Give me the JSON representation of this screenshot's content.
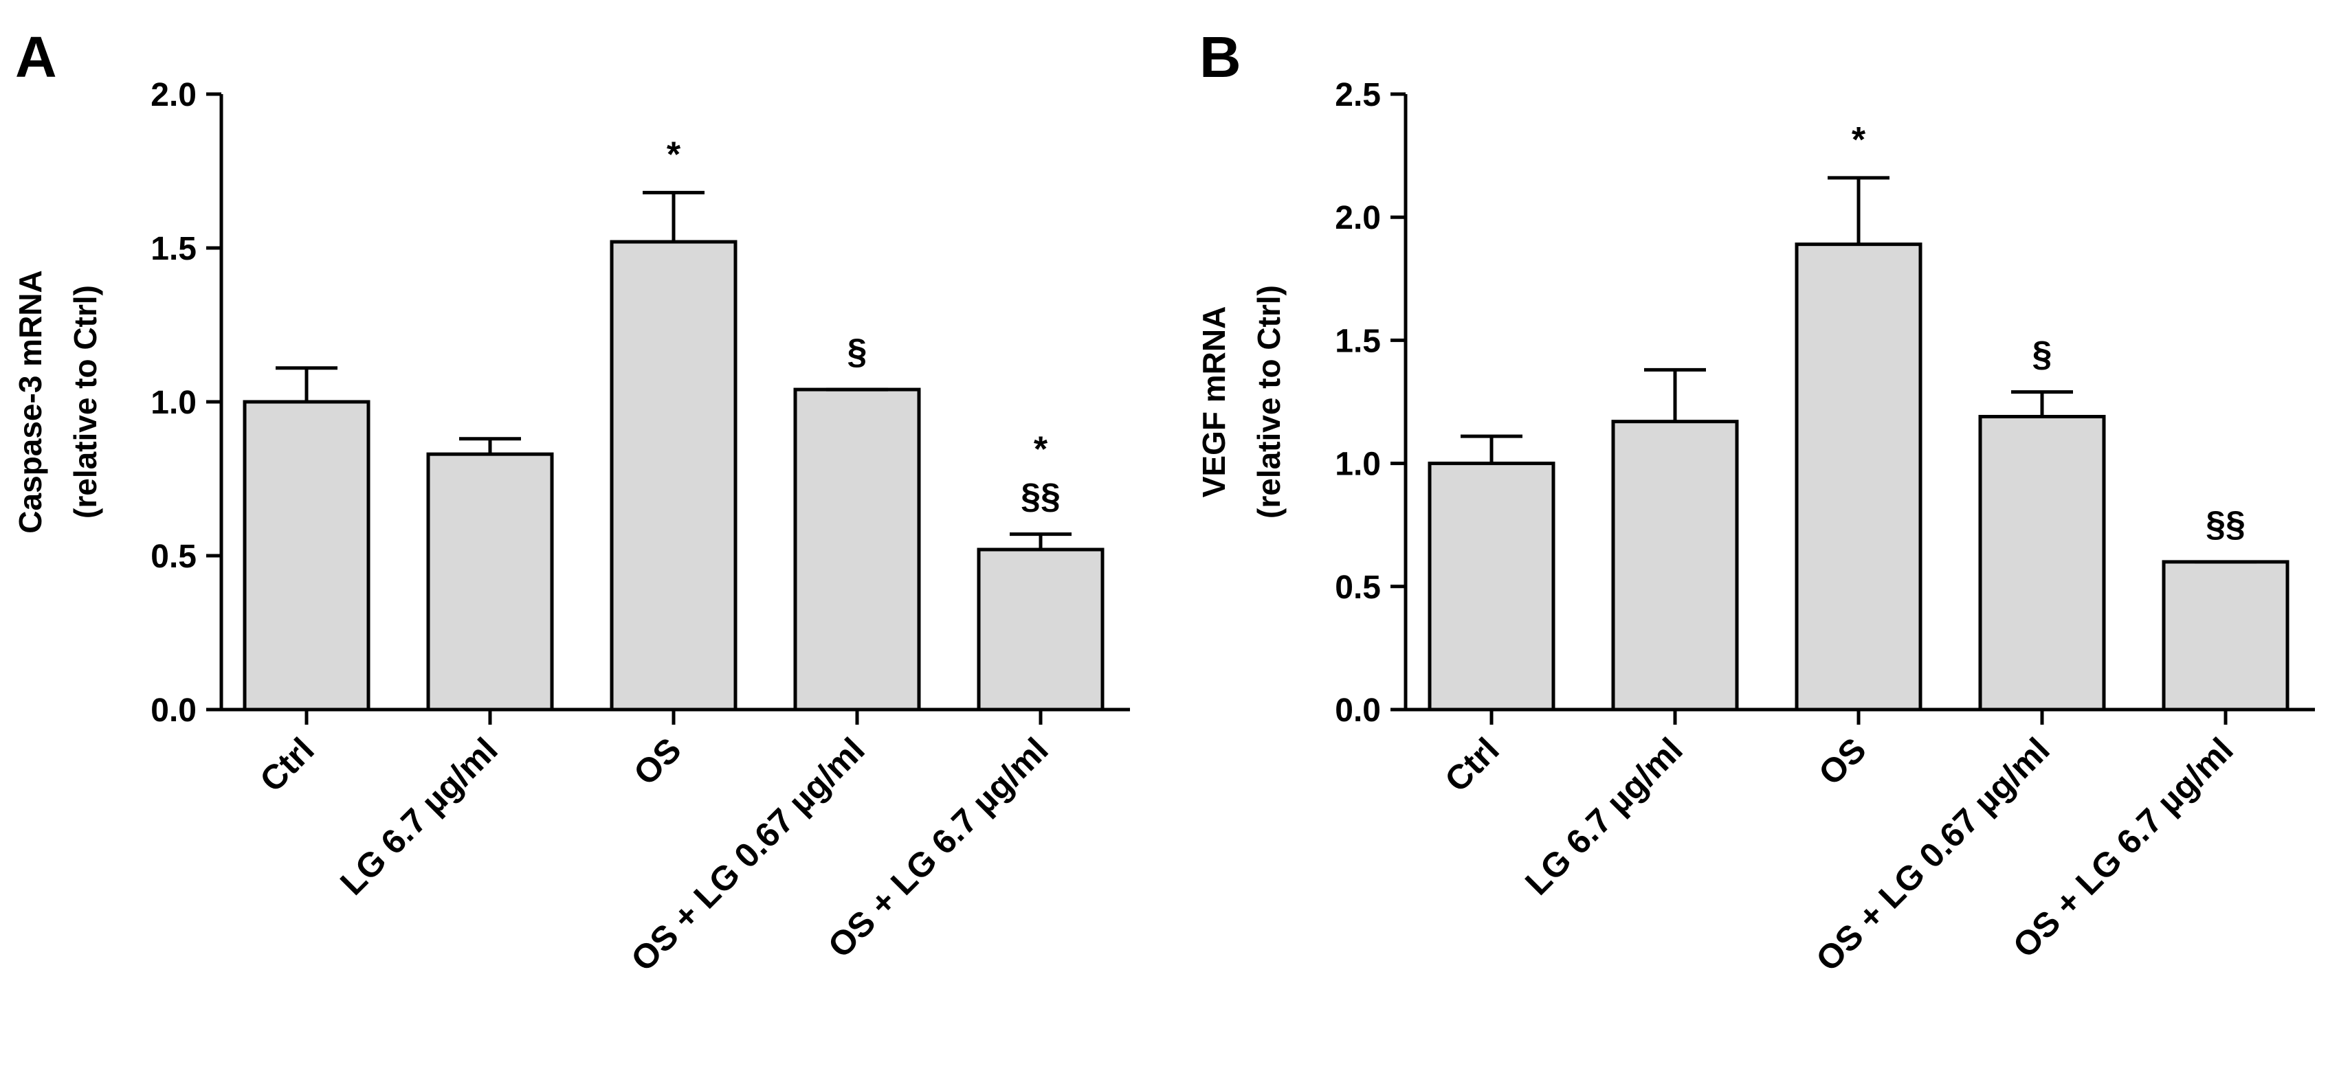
{
  "chart_data": [
    {
      "type": "bar",
      "panel_label": "A",
      "title": "",
      "xlabel": "",
      "ylabel_lines": [
        "Caspase-3 mRNA",
        "(relative to Ctrl)"
      ],
      "categories": [
        "Ctrl",
        "LG 6.7 µg/ml",
        "OS",
        "OS + LG 0.67 µg/ml",
        "OS + LG 6.7 µg/ml"
      ],
      "values": [
        1.0,
        0.83,
        1.52,
        1.04,
        0.52
      ],
      "errors": [
        0.11,
        0.05,
        0.16,
        0.0,
        0.05
      ],
      "annotations": [
        [],
        [],
        [
          "*"
        ],
        [
          "§"
        ],
        [
          "*",
          "§§"
        ]
      ],
      "ylim": [
        0.0,
        2.0
      ],
      "yticks": [
        "0.0",
        "0.5",
        "1.0",
        "1.5",
        "2.0"
      ],
      "grid": false,
      "bar_color": "#d9d9d9"
    },
    {
      "type": "bar",
      "panel_label": "B",
      "title": "",
      "xlabel": "",
      "ylabel_lines": [
        "VEGF mRNA",
        "(relative to Ctrl)"
      ],
      "categories": [
        "Ctrl",
        "LG 6.7 µg/ml",
        "OS",
        "OS + LG 0.67 µg/ml",
        "OS + LG 6.7 µg/ml"
      ],
      "values": [
        1.0,
        1.17,
        1.89,
        1.19,
        0.6
      ],
      "errors": [
        0.11,
        0.21,
        0.27,
        0.1,
        0.0
      ],
      "annotations": [
        [],
        [],
        [
          "*"
        ],
        [
          "§"
        ],
        [
          "§§"
        ]
      ],
      "ylim": [
        0.0,
        2.5
      ],
      "yticks": [
        "0.0",
        "0.5",
        "1.0",
        "1.5",
        "2.0",
        "2.5"
      ],
      "grid": false,
      "bar_color": "#d9d9d9"
    }
  ]
}
